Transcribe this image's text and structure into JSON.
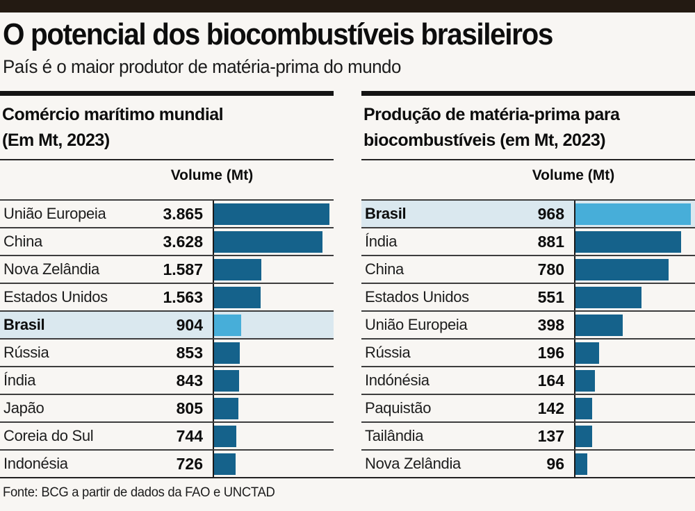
{
  "page": {
    "title": "O potencial dos biocombustíveis brasileiros",
    "subtitle": "País é o maior produtor de matéria-prima do mundo",
    "source": "Fonte: BCG a partir de dados da FAO e UNCTAD"
  },
  "colors": {
    "bar": "#15628b",
    "highlight_bar": "#47aed9",
    "highlight_row_bg": "#dae8ef",
    "top_bar": "#231a12"
  },
  "chart_data": [
    {
      "type": "bar",
      "title": "Comércio marítimo mundial (Em Mt, 2023)",
      "title_lines": [
        "Comércio marítimo mundial",
        "(Em Mt, 2023)"
      ],
      "column_header": "Volume (Mt)",
      "unit": "Mt",
      "year": "2023",
      "orientation": "horizontal",
      "axis_max": 4000,
      "highlight_category": "Brasil",
      "categories": [
        "União Europeia",
        "China",
        "Nova Zelândia",
        "Estados Unidos",
        "Brasil",
        "Rússia",
        "Índia",
        "Japão",
        "Coreia do Sul",
        "Indonésia"
      ],
      "values": [
        3865,
        3628,
        1587,
        1563,
        904,
        853,
        843,
        805,
        744,
        726
      ],
      "value_labels": [
        "3.865",
        "3.628",
        "1.587",
        "1.563",
        "904",
        "853",
        "843",
        "805",
        "744",
        "726"
      ]
    },
    {
      "type": "bar",
      "title": "Produção de matéria-prima para biocombustíveis (em Mt, 2023)",
      "title_lines": [
        "Produção de matéria-prima para",
        "biocombustíveis (em Mt, 2023)"
      ],
      "column_header": "Volume (Mt)",
      "unit": "Mt",
      "year": "2023",
      "orientation": "horizontal",
      "axis_max": 1000,
      "highlight_category": "Brasil",
      "categories": [
        "Brasil",
        "Índia",
        "China",
        "Estados Unidos",
        "União Europeia",
        "Rússia",
        "Indónésia",
        "Paquistão",
        "Tailândia",
        "Nova Zelândia"
      ],
      "values": [
        968,
        881,
        780,
        551,
        398,
        196,
        164,
        142,
        137,
        96
      ],
      "value_labels": [
        "968",
        "881",
        "780",
        "551",
        "398",
        "196",
        "164",
        "142",
        "137",
        "96"
      ]
    }
  ]
}
